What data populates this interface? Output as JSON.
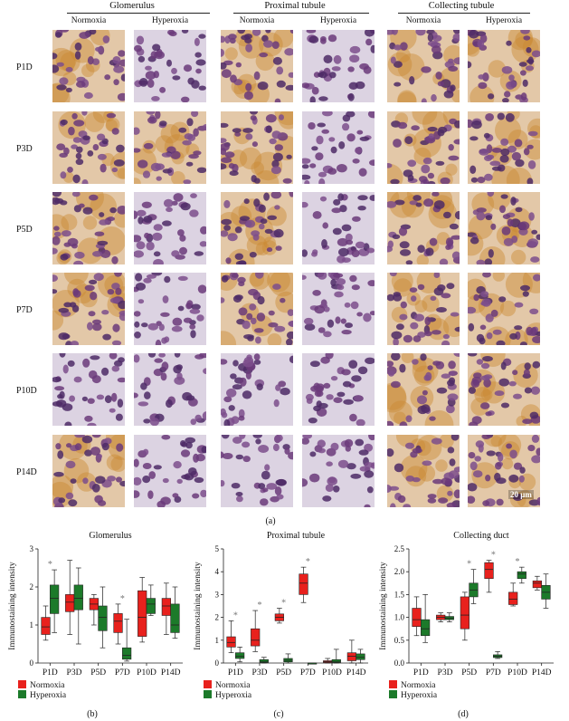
{
  "figure": {
    "panel_a": {
      "groups": [
        "Glomerulus",
        "Proximal tubule",
        "Collecting tubule"
      ],
      "conditions": [
        "Normoxia",
        "Hyperoxia"
      ],
      "rows": [
        "P1D",
        "P3D",
        "P5D",
        "P7D",
        "P10D",
        "P14D"
      ],
      "scale_bar": "20 μm",
      "caption": "(a)"
    },
    "legend": {
      "normoxia": "Normoxia",
      "hyperoxia": "Hyperoxia"
    },
    "colors": {
      "normoxia": "#e8211d",
      "hyperoxia": "#1c7a2a",
      "stain_purple": "#6b3a7a",
      "stain_brown": "#c98a34"
    }
  },
  "chart_data": [
    {
      "type": "box",
      "title": "Glomerulus",
      "ylabel": "Immunostaining intensity",
      "caption": "(b)",
      "categories": [
        "P1D",
        "P3D",
        "P5D",
        "P7D",
        "P10D",
        "P14D"
      ],
      "ylim": [
        0,
        3
      ],
      "yticks": [
        0,
        1,
        2,
        3
      ],
      "series": [
        {
          "name": "Normoxia",
          "boxes": [
            [
              0.6,
              0.75,
              0.95,
              1.2,
              1.5
            ],
            [
              0.75,
              1.35,
              1.6,
              1.8,
              2.7
            ],
            [
              1.0,
              1.4,
              1.55,
              1.7,
              1.8
            ],
            [
              0.5,
              0.8,
              1.1,
              1.3,
              1.55
            ],
            [
              0.55,
              0.7,
              1.2,
              1.9,
              2.25
            ],
            [
              0.75,
              1.25,
              1.5,
              1.7,
              2.1
            ]
          ]
        },
        {
          "name": "Hyperoxia",
          "boxes": [
            [
              0.8,
              1.3,
              1.7,
              2.05,
              2.45
            ],
            [
              0.5,
              1.4,
              1.7,
              2.05,
              2.5
            ],
            [
              0.4,
              0.85,
              1.2,
              1.5,
              2.0
            ],
            [
              0.05,
              0.1,
              0.2,
              0.4,
              1.15
            ],
            [
              1.25,
              1.3,
              1.55,
              1.7,
              2.05
            ],
            [
              0.65,
              0.8,
              1.0,
              1.55,
              2.0
            ]
          ]
        }
      ],
      "significance": [
        0,
        3
      ]
    },
    {
      "type": "box",
      "title": "Proximal tubule",
      "ylabel": "Immunostaining intensity",
      "caption": "(c)",
      "categories": [
        "P1D",
        "P3D",
        "P5D",
        "P7D",
        "P10D",
        "P14D"
      ],
      "ylim": [
        0,
        5
      ],
      "yticks": [
        0,
        1,
        2,
        3,
        4,
        5
      ],
      "series": [
        {
          "name": "Normoxia",
          "boxes": [
            [
              0.45,
              0.7,
              0.9,
              1.15,
              1.85
            ],
            [
              0.5,
              0.75,
              1.0,
              1.5,
              2.3
            ],
            [
              1.75,
              1.85,
              2.0,
              2.15,
              2.4
            ],
            [
              2.65,
              3.0,
              3.5,
              3.9,
              4.2
            ],
            [
              0.0,
              0.02,
              0.06,
              0.1,
              0.2
            ],
            [
              0.0,
              0.1,
              0.3,
              0.45,
              1.0
            ]
          ]
        },
        {
          "name": "Hyperoxia",
          "boxes": [
            [
              0.05,
              0.2,
              0.3,
              0.45,
              0.7
            ],
            [
              0.0,
              0.02,
              0.05,
              0.15,
              0.25
            ],
            [
              0.0,
              0.05,
              0.12,
              0.2,
              0.4
            ],
            [
              0.0,
              0.0,
              0.0,
              0.0,
              0.0
            ],
            [
              0.0,
              0.02,
              0.05,
              0.15,
              0.6
            ],
            [
              0.0,
              0.15,
              0.25,
              0.4,
              0.6
            ]
          ]
        }
      ],
      "significance": [
        0,
        1,
        2,
        3
      ]
    },
    {
      "type": "box",
      "title": "Collecting duct",
      "ylabel": "Immunostaining intensity",
      "caption": "(d)",
      "categories": [
        "P1D",
        "P3D",
        "P5D",
        "P7D",
        "P10D",
        "P14D"
      ],
      "ylim": [
        0,
        2.5
      ],
      "yticks": [
        0.0,
        0.5,
        1.0,
        1.5,
        2.0,
        2.5
      ],
      "series": [
        {
          "name": "Normoxia",
          "boxes": [
            [
              0.6,
              0.8,
              0.95,
              1.2,
              1.45
            ],
            [
              0.9,
              0.95,
              1.0,
              1.05,
              1.1
            ],
            [
              0.5,
              0.75,
              1.05,
              1.45,
              1.55
            ],
            [
              1.55,
              1.85,
              2.05,
              2.2,
              2.25
            ],
            [
              1.25,
              1.28,
              1.4,
              1.55,
              1.75
            ],
            [
              1.6,
              1.65,
              1.75,
              1.8,
              1.9
            ]
          ]
        },
        {
          "name": "Hyperoxia",
          "boxes": [
            [
              0.45,
              0.6,
              0.75,
              0.95,
              1.5
            ],
            [
              0.9,
              0.95,
              0.98,
              1.02,
              1.1
            ],
            [
              1.3,
              1.45,
              1.6,
              1.75,
              2.05
            ],
            [
              0.1,
              0.12,
              0.15,
              0.18,
              0.25
            ],
            [
              1.75,
              1.85,
              1.95,
              2.0,
              2.1
            ],
            [
              1.2,
              1.4,
              1.55,
              1.7,
              1.95
            ]
          ]
        }
      ],
      "significance": [
        2,
        3,
        4
      ]
    }
  ]
}
